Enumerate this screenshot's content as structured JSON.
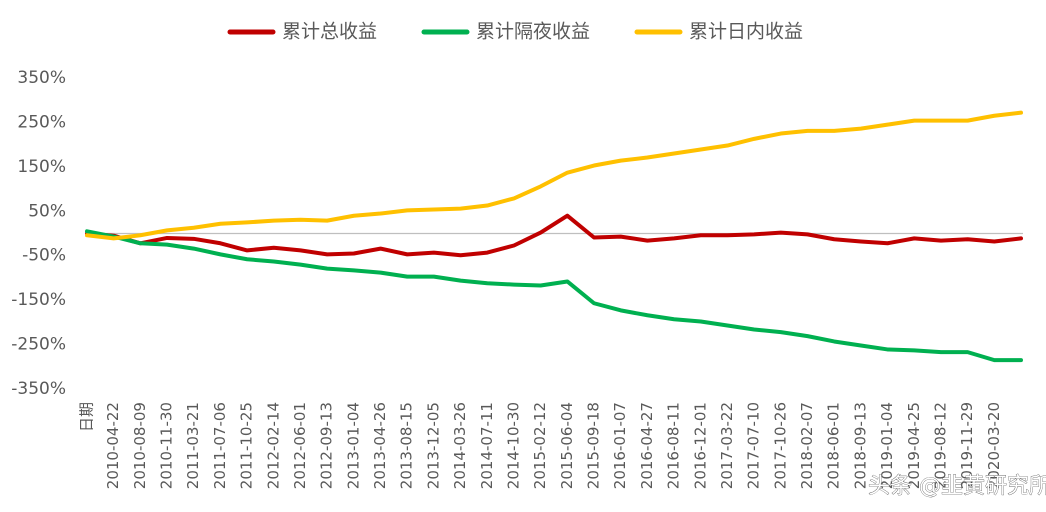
{
  "chart_data": {
    "type": "line",
    "x_label": "日期",
    "watermark": "头条 @韭黄研究所",
    "categories": [
      null,
      "2010-04-22",
      "2010-08-09",
      "2010-11-30",
      "2011-03-21",
      "2011-07-06",
      "2011-10-25",
      "2012-02-14",
      "2012-06-01",
      "2012-09-13",
      "2013-01-04",
      "2013-04-26",
      "2013-08-15",
      "2013-12-05",
      "2014-03-26",
      "2014-07-11",
      "2014-10-30",
      "2015-02-12",
      "2015-06-04",
      "2015-09-18",
      "2016-01-07",
      "2016-04-27",
      "2016-08-11",
      "2016-12-01",
      "2017-03-22",
      "2017-07-10",
      "2017-10-26",
      "2018-02-07",
      "2018-06-01",
      "2018-09-13",
      "2019-01-04",
      "2019-04-25",
      "2019-08-12",
      "2019-11-29",
      "2020-03-20",
      null
    ],
    "series": [
      {
        "name": "累计总收益",
        "color": "#c00000",
        "values": [
          0,
          -5,
          -22,
          -10,
          -12,
          -22,
          -38,
          -32,
          -38,
          -47,
          -45,
          -34,
          -47,
          -43,
          -49,
          -43,
          -27,
          2,
          40,
          -9,
          -7,
          -16,
          -11,
          -4,
          -4,
          -2,
          2,
          -2,
          -13,
          -18,
          -22,
          -11,
          -16,
          -13,
          -18,
          -11
        ]
      },
      {
        "name": "累计隔夜收益",
        "color": "#00b050",
        "values": [
          5,
          -7,
          -22,
          -25,
          -34,
          -47,
          -58,
          -63,
          -70,
          -79,
          -83,
          -88,
          -97,
          -97,
          -106,
          -112,
          -115,
          -117,
          -108,
          -157,
          -173,
          -184,
          -193,
          -198,
          -207,
          -216,
          -222,
          -231,
          -243,
          -252,
          -261,
          -263,
          -267,
          -267,
          -285,
          -285
        ]
      },
      {
        "name": "累计日内收益",
        "color": "#ffc000",
        "values": [
          -4,
          -11,
          -4,
          7,
          13,
          22,
          25,
          29,
          31,
          29,
          40,
          45,
          52,
          54,
          56,
          63,
          79,
          106,
          137,
          153,
          164,
          171,
          180,
          189,
          198,
          213,
          225,
          231,
          231,
          236,
          245,
          254,
          254,
          254,
          265,
          272
        ]
      }
    ],
    "ylim": [
      -350,
      350
    ],
    "yticks": [
      {
        "value": 350,
        "label": "350%"
      },
      {
        "value": 250,
        "label": "250%"
      },
      {
        "value": 150,
        "label": "150%"
      },
      {
        "value": 50,
        "label": "50%"
      },
      {
        "value": -50,
        "label": "-50%"
      },
      {
        "value": -150,
        "label": "-150%"
      },
      {
        "value": -250,
        "label": "-250%"
      },
      {
        "value": -350,
        "label": "-350%"
      }
    ]
  }
}
